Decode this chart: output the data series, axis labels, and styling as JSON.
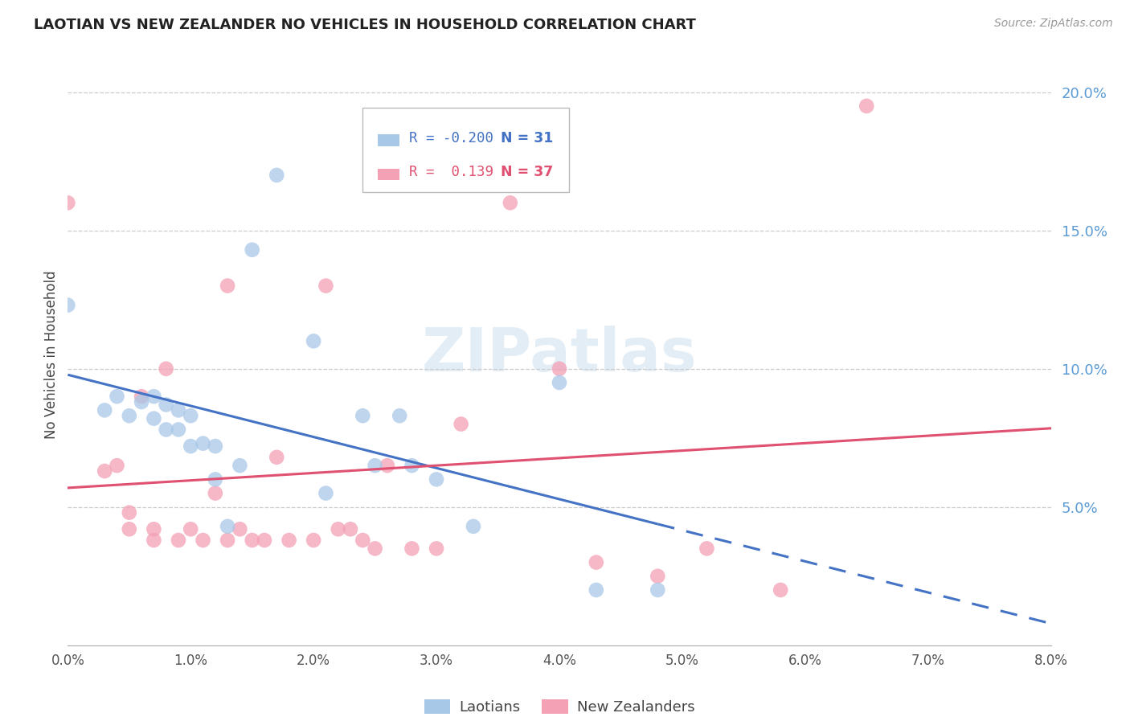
{
  "title": "LAOTIAN VS NEW ZEALANDER NO VEHICLES IN HOUSEHOLD CORRELATION CHART",
  "source": "Source: ZipAtlas.com",
  "ylabel": "No Vehicles in Household",
  "xlim": [
    0.0,
    0.08
  ],
  "ylim": [
    0.0,
    0.21
  ],
  "yticks": [
    0.05,
    0.1,
    0.15,
    0.2
  ],
  "xticks": [
    0.0,
    0.01,
    0.02,
    0.03,
    0.04,
    0.05,
    0.06,
    0.07,
    0.08
  ],
  "blue_color": "#a8c8e8",
  "pink_color": "#f4a0b5",
  "blue_line_color": "#4472c4",
  "pink_line_color": "#e05070",
  "watermark": "ZIPatlas",
  "laotian_x": [
    0.0,
    0.003,
    0.004,
    0.005,
    0.006,
    0.007,
    0.007,
    0.008,
    0.008,
    0.009,
    0.009,
    0.01,
    0.01,
    0.011,
    0.012,
    0.012,
    0.013,
    0.014,
    0.015,
    0.017,
    0.02,
    0.021,
    0.024,
    0.025,
    0.027,
    0.028,
    0.03,
    0.033,
    0.04,
    0.043,
    0.048
  ],
  "laotian_y": [
    0.123,
    0.085,
    0.09,
    0.083,
    0.088,
    0.09,
    0.082,
    0.087,
    0.078,
    0.085,
    0.078,
    0.083,
    0.072,
    0.073,
    0.072,
    0.06,
    0.043,
    0.065,
    0.143,
    0.17,
    0.11,
    0.055,
    0.083,
    0.065,
    0.083,
    0.065,
    0.06,
    0.043,
    0.095,
    0.02,
    0.02
  ],
  "nz_x": [
    0.0,
    0.003,
    0.004,
    0.005,
    0.005,
    0.006,
    0.007,
    0.007,
    0.008,
    0.009,
    0.01,
    0.011,
    0.012,
    0.013,
    0.013,
    0.014,
    0.015,
    0.016,
    0.017,
    0.018,
    0.02,
    0.021,
    0.022,
    0.023,
    0.024,
    0.025,
    0.026,
    0.028,
    0.03,
    0.032,
    0.036,
    0.04,
    0.043,
    0.048,
    0.052,
    0.058,
    0.065
  ],
  "nz_y": [
    0.16,
    0.063,
    0.065,
    0.048,
    0.042,
    0.09,
    0.038,
    0.042,
    0.1,
    0.038,
    0.042,
    0.038,
    0.055,
    0.038,
    0.13,
    0.042,
    0.038,
    0.038,
    0.068,
    0.038,
    0.038,
    0.13,
    0.042,
    0.042,
    0.038,
    0.035,
    0.065,
    0.035,
    0.035,
    0.08,
    0.16,
    0.1,
    0.03,
    0.025,
    0.035,
    0.02,
    0.195
  ],
  "blue_R_text": "R = -0.200",
  "blue_N_text": "N = 31",
  "pink_R_text": "R =  0.139",
  "pink_N_text": "N = 37",
  "legend_blue_label": "Laotians",
  "legend_pink_label": "New Zealanders",
  "blue_line_start_x": 0.0,
  "blue_line_end_x": 0.048,
  "blue_line_dash_end_x": 0.08,
  "pink_line_start_x": 0.0,
  "pink_line_end_x": 0.08
}
